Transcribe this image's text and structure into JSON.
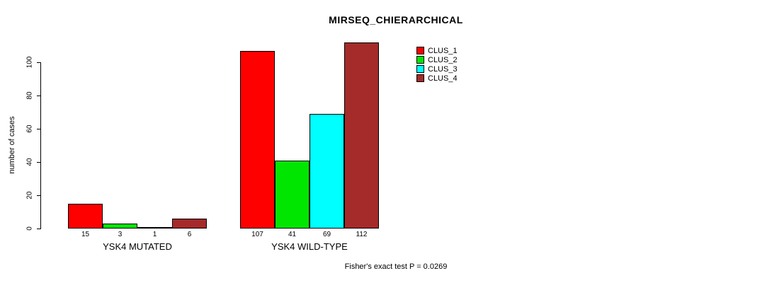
{
  "chart_data": {
    "type": "bar",
    "title": "MIRSEQ_CHIERARCHICAL",
    "ylabel": "number of cases",
    "xlabel": "",
    "ylim": [
      0,
      115
    ],
    "yticks": [
      0,
      20,
      40,
      60,
      80,
      100
    ],
    "categories": [
      "YSK4 MUTATED",
      "YSK4 WILD-TYPE"
    ],
    "series": [
      {
        "name": "CLUS_1",
        "color": "#ff0000",
        "values": [
          15,
          107
        ]
      },
      {
        "name": "CLUS_2",
        "color": "#00e600",
        "values": [
          3,
          41
        ]
      },
      {
        "name": "CLUS_3",
        "color": "#00ffff",
        "values": [
          1,
          69
        ]
      },
      {
        "name": "CLUS_4",
        "color": "#a52a2a",
        "values": [
          6,
          112
        ]
      }
    ],
    "bar_value_labels": [
      [
        "15",
        "3",
        "1",
        "6"
      ],
      [
        "107",
        "41",
        "69",
        "112"
      ]
    ],
    "legend_position": "top-right-inside",
    "grid": false,
    "bar_border_color": "#000000",
    "annotation": "Fisher's exact test P = 0.0269"
  }
}
